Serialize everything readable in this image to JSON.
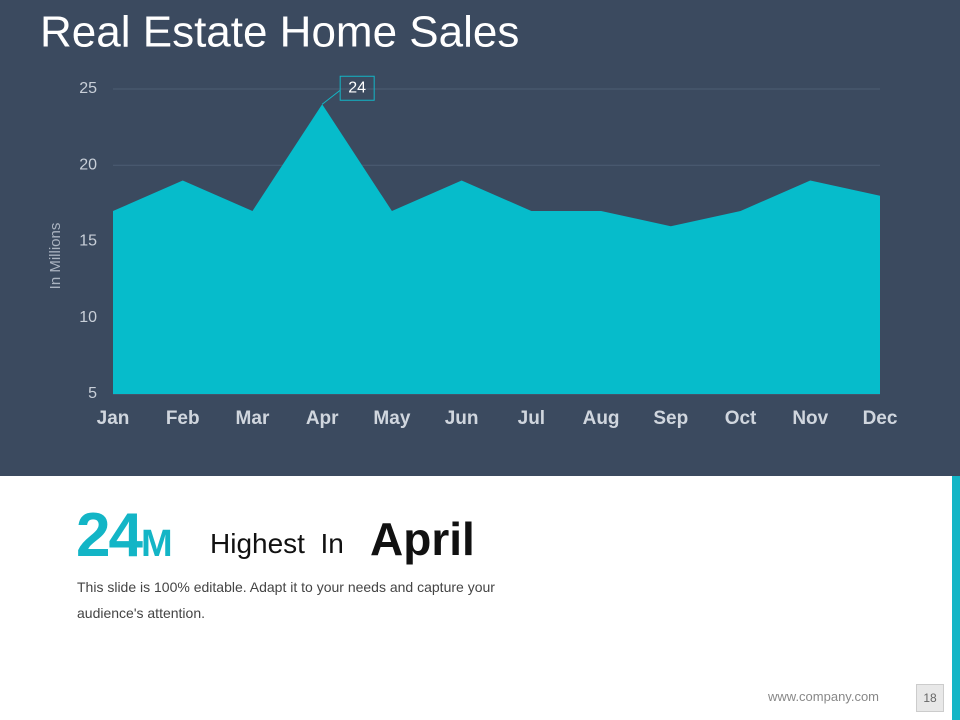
{
  "chart_data": {
    "type": "area",
    "title": "Real Estate Home Sales",
    "y_label": "In Millions",
    "categories": [
      "Jan",
      "Feb",
      "Mar",
      "Apr",
      "May",
      "Jun",
      "Jul",
      "Aug",
      "Sep",
      "Oct",
      "Nov",
      "Dec"
    ],
    "values": [
      17,
      19,
      17,
      24,
      17,
      19,
      17,
      17,
      16,
      17,
      19,
      18
    ],
    "value_labels": [
      null,
      null,
      null,
      "24",
      null,
      null,
      null,
      null,
      null,
      null,
      null,
      null
    ],
    "color": "#06bccb",
    "ylim": [
      5,
      25
    ],
    "yticks": [
      5,
      10,
      15,
      20,
      25
    ],
    "grid": true
  },
  "highlight": {
    "value": "24",
    "unit": "M",
    "text": "Highest  In",
    "month": "April"
  },
  "description": "This slide is 100% editable. Adapt it to your needs and capture your audience's attention.",
  "footer": {
    "url": "www.company.com",
    "page": "18"
  }
}
